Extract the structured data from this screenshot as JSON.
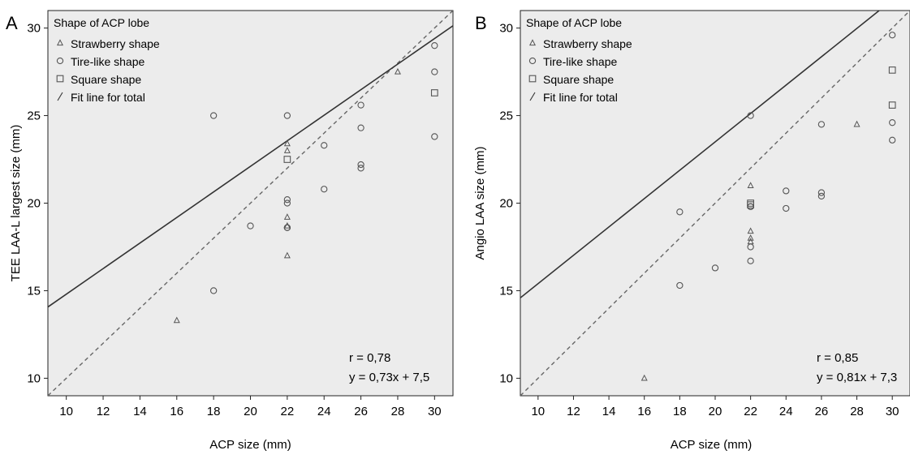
{
  "chart_data": [
    {
      "type": "scatter",
      "panel_label": "A",
      "xlabel": "ACP size (mm)",
      "ylabel": "TEE LAA-L largest size (mm)",
      "xlim": [
        9,
        31
      ],
      "ylim": [
        9,
        31
      ],
      "xticks": [
        "10",
        "12",
        "14",
        "16",
        "18",
        "20",
        "22",
        "24",
        "26",
        "28",
        "30"
      ],
      "yticks": [
        "10",
        "15",
        "20",
        "25",
        "30"
      ],
      "legend_title": "Shape of ACP lobe",
      "legend_placement": "top-left",
      "legend": [
        {
          "marker": "triangle",
          "label": "Strawberry shape"
        },
        {
          "marker": "circle",
          "label": "Tire-like shape"
        },
        {
          "marker": "square",
          "label": "Square shape"
        },
        {
          "marker": "line",
          "label": "Fit line for total"
        }
      ],
      "series": [
        {
          "marker": "triangle",
          "points": [
            [
              16,
              13.3
            ],
            [
              22,
              23.4
            ],
            [
              22,
              23.0
            ],
            [
              22,
              19.2
            ],
            [
              22,
              18.7
            ],
            [
              22,
              17.0
            ],
            [
              28,
              27.5
            ]
          ]
        },
        {
          "marker": "circle",
          "points": [
            [
              18,
              25.0
            ],
            [
              18,
              15.0
            ],
            [
              20,
              18.7
            ],
            [
              22,
              25.0
            ],
            [
              22,
              20.2
            ],
            [
              22,
              20.0
            ],
            [
              22,
              18.6
            ],
            [
              22,
              18.6
            ],
            [
              24,
              23.3
            ],
            [
              24,
              20.8
            ],
            [
              26,
              25.6
            ],
            [
              26,
              24.3
            ],
            [
              26,
              22.2
            ],
            [
              26,
              22.0
            ],
            [
              30,
              29.0
            ],
            [
              30,
              27.5
            ],
            [
              30,
              23.8
            ]
          ]
        },
        {
          "marker": "square",
          "points": [
            [
              22,
              22.5
            ],
            [
              30,
              26.3
            ]
          ]
        }
      ],
      "fit_line": {
        "slope": 0.73,
        "intercept": 7.5
      },
      "identity_line": true,
      "annotations": [
        "r = 0,78",
        "y = 0,73x + 7,5"
      ],
      "background": "#ececec"
    },
    {
      "type": "scatter",
      "panel_label": "B",
      "xlabel": "ACP size (mm)",
      "ylabel": "Angio LAA size (mm)",
      "xlim": [
        9,
        31
      ],
      "ylim": [
        9,
        31
      ],
      "xticks": [
        "10",
        "12",
        "14",
        "16",
        "18",
        "20",
        "22",
        "24",
        "26",
        "28",
        "30"
      ],
      "yticks": [
        "10",
        "15",
        "20",
        "25",
        "30"
      ],
      "legend_title": "Shape of ACP lobe",
      "legend_placement": "top-left",
      "legend": [
        {
          "marker": "triangle",
          "label": "Strawberry shape"
        },
        {
          "marker": "circle",
          "label": "Tire-like shape"
        },
        {
          "marker": "square",
          "label": "Square shape"
        },
        {
          "marker": "line",
          "label": "Fit line for total"
        }
      ],
      "series": [
        {
          "marker": "triangle",
          "points": [
            [
              16,
              10.0
            ],
            [
              22,
              21.0
            ],
            [
              22,
              18.4
            ],
            [
              22,
              18.0
            ],
            [
              22,
              17.8
            ],
            [
              28,
              24.5
            ]
          ]
        },
        {
          "marker": "circle",
          "points": [
            [
              18,
              19.5
            ],
            [
              18,
              15.3
            ],
            [
              20,
              16.3
            ],
            [
              22,
              25.0
            ],
            [
              22,
              19.8
            ],
            [
              22,
              19.8
            ],
            [
              22,
              17.5
            ],
            [
              22,
              16.7
            ],
            [
              24,
              20.7
            ],
            [
              24,
              19.7
            ],
            [
              26,
              24.5
            ],
            [
              26,
              20.6
            ],
            [
              26,
              20.4
            ],
            [
              30,
              29.6
            ],
            [
              30,
              24.6
            ],
            [
              30,
              23.6
            ]
          ]
        },
        {
          "marker": "square",
          "points": [
            [
              22,
              20.0
            ],
            [
              22,
              19.9
            ],
            [
              30,
              27.6
            ],
            [
              30,
              25.6
            ]
          ]
        }
      ],
      "fit_line": {
        "slope": 0.81,
        "intercept": 7.3
      },
      "identity_line": true,
      "annotations": [
        "r = 0,85",
        "y = 0,81x + 7,3"
      ],
      "background": "#ececec"
    }
  ]
}
